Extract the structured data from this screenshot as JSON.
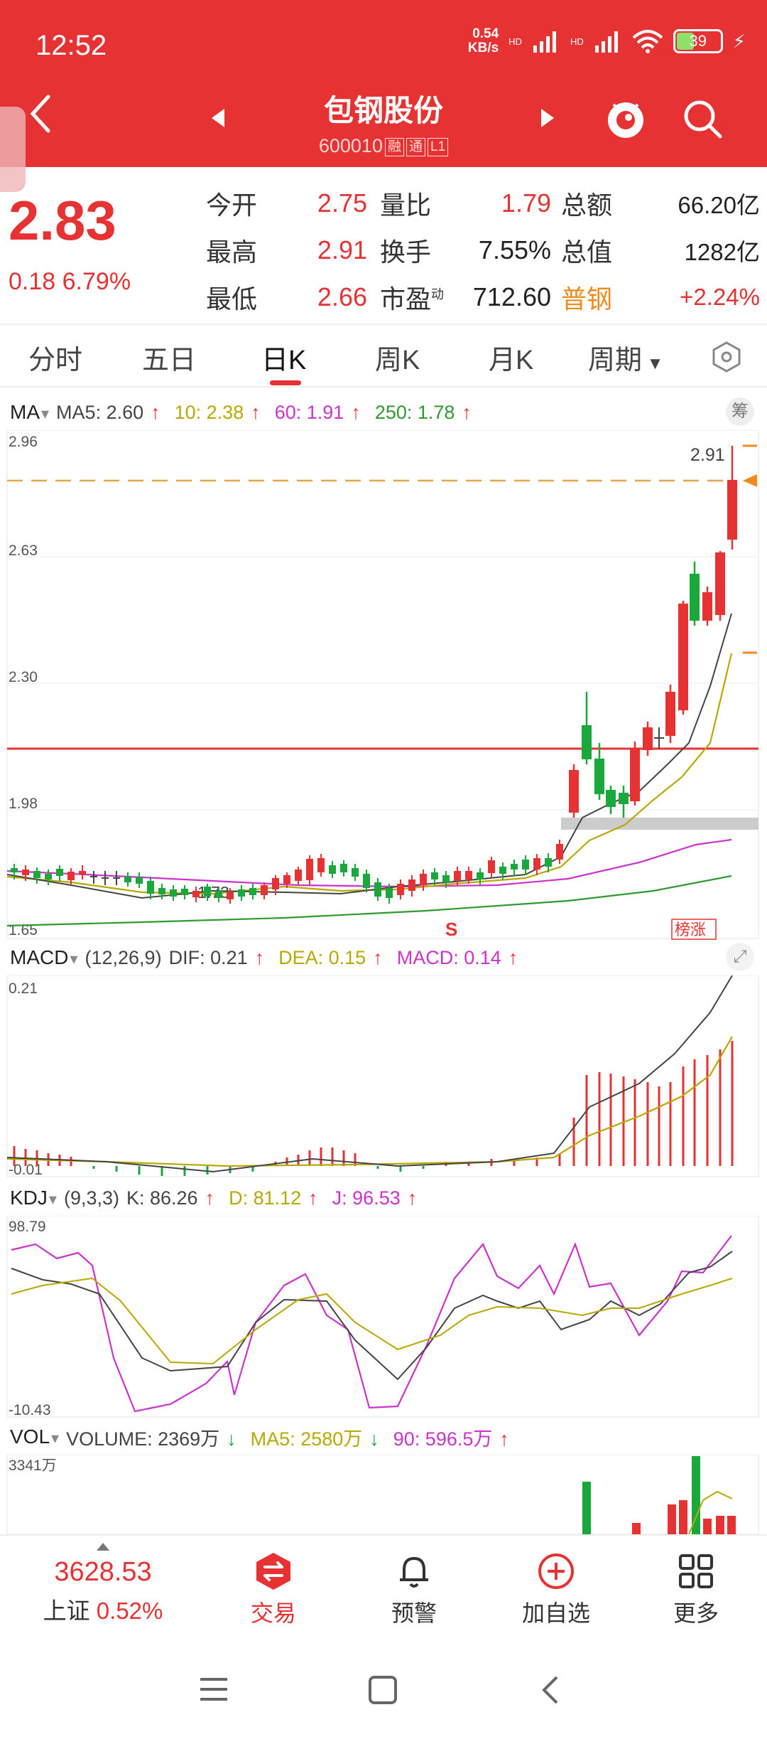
{
  "status_bar": {
    "time": "12:52",
    "net_speed": "0.54",
    "net_unit": "KB/s",
    "hd1": "HD",
    "hd2": "HD",
    "battery": "39"
  },
  "header": {
    "title": "包钢股份",
    "code": "600010",
    "badges": [
      "融",
      "通",
      "L1"
    ]
  },
  "quote": {
    "price": "2.83",
    "change": "0.18",
    "change_pct": "6.79%",
    "rows": [
      {
        "l1": "今开",
        "v1": "2.75",
        "l2": "量比",
        "v2": "1.79",
        "l3": "总额",
        "v3": "66.20亿"
      },
      {
        "l1": "最高",
        "v1": "2.91",
        "l2": "换手",
        "v2": "7.55%",
        "l3": "总值",
        "v3": "1282亿"
      },
      {
        "l1": "最低",
        "v1": "2.66",
        "l2": "市盈",
        "l2_sup": "动",
        "v2": "712.60",
        "l3": "普钢",
        "v3": "+2.24%"
      }
    ]
  },
  "tabs": [
    "分时",
    "五日",
    "日K",
    "周K",
    "月K",
    "周期"
  ],
  "active_tab": "日K",
  "ma_header": {
    "selector": "MA",
    "ma5": "MA5: 2.60",
    "ma10": "10: 2.38",
    "ma60": "60: 1.91",
    "ma250": "250: 1.78",
    "chou": "筹"
  },
  "kline": {
    "y_labels": [
      "2.96",
      "2.63",
      "2.30",
      "1.98",
      "1.65"
    ],
    "high_label": "2.91",
    "low_label": "1.73",
    "s_marker": "S",
    "tag": "榜涨"
  },
  "macd_header": {
    "selector": "MACD",
    "params": "(12,26,9)",
    "dif": "DIF: 0.21",
    "dea": "DEA: 0.15",
    "macd": "MACD: 0.14"
  },
  "macd": {
    "y_top": "0.21",
    "y_bottom": "-0.01"
  },
  "kdj_header": {
    "selector": "KDJ",
    "params": "(9,3,3)",
    "k": "K: 86.26",
    "d": "D: 81.12",
    "j": "J: 96.53"
  },
  "kdj": {
    "y_top": "98.79",
    "y_bottom": "-10.43"
  },
  "vol_header": {
    "selector": "VOL",
    "volume": "VOLUME: 2369万",
    "ma5": "MA5: 2580万",
    "ma90": "90: 596.5万"
  },
  "vol": {
    "y_top": "3341万"
  },
  "bottom_nav": {
    "index_value": "3628.53",
    "index_name": "上证",
    "index_pct": "0.52%",
    "trade": "交易",
    "alert": "预警",
    "add": "加自选",
    "more": "更多"
  },
  "colors": {
    "brand": "#e63232",
    "up": "#e63232",
    "down": "#1aa83c",
    "ma5": "#444444",
    "ma10": "#b9a800",
    "ma60": "#cc33cc",
    "ma250": "#2f9a2f"
  }
}
